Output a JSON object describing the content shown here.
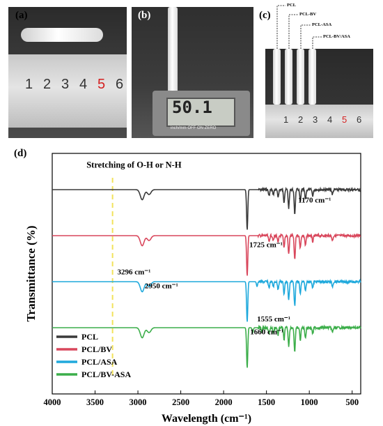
{
  "panels": {
    "a": {
      "label": "(a)",
      "ruler_numbers": [
        "1",
        "2",
        "3",
        "4",
        "5",
        "6"
      ]
    },
    "b": {
      "label": "(b)",
      "readout": "50.1",
      "units_strip": "inch/mm   OFF  ON   ZERO"
    },
    "c": {
      "label": "(c)",
      "ruler_numbers": [
        "1",
        "2",
        "3",
        "4",
        "5",
        "6"
      ],
      "tube_labels": [
        "PCL",
        "PCL-BV",
        "PCL-ASA",
        "PCL-BV/ASA"
      ]
    },
    "d": {
      "label": "(d)"
    }
  },
  "colors": {
    "PCL": "#3a3a3a",
    "PCL/BV": "#d9475c",
    "PCL/ASA": "#1fa9dc",
    "PCL/BV-ASA": "#3cae4a",
    "marker": "#f2e25a",
    "highlight": "#d42020"
  },
  "chart_data": {
    "type": "line",
    "title": "",
    "xlabel": "Wavelength (cm⁻¹)",
    "ylabel": "Transmittance (%)",
    "xlim": [
      4000,
      400
    ],
    "x_reversed": true,
    "y_ticks_shown": false,
    "xticks": [
      4000,
      3500,
      3000,
      2500,
      2000,
      1500,
      1000,
      500
    ],
    "xtick_labels": [
      "4000",
      "3500",
      "3000",
      "2500",
      "2000",
      "1500",
      "1000",
      "500"
    ],
    "legend_position": "bottom-left",
    "series": [
      {
        "name": "PCL",
        "offset": 3,
        "dips": [
          [
            2950,
            0.25
          ],
          [
            2870,
            0.12
          ],
          [
            1725,
            1.0
          ],
          [
            1470,
            0.15
          ],
          [
            1420,
            0.12
          ],
          [
            1365,
            0.18
          ],
          [
            1295,
            0.3
          ],
          [
            1240,
            0.45
          ],
          [
            1170,
            0.6
          ],
          [
            1105,
            0.3
          ],
          [
            1045,
            0.25
          ],
          [
            960,
            0.15
          ],
          [
            730,
            0.12
          ]
        ]
      },
      {
        "name": "PCL/BV",
        "offset": 2,
        "dips": [
          [
            2950,
            0.25
          ],
          [
            2870,
            0.12
          ],
          [
            1725,
            1.0
          ],
          [
            1470,
            0.15
          ],
          [
            1420,
            0.12
          ],
          [
            1365,
            0.18
          ],
          [
            1295,
            0.3
          ],
          [
            1240,
            0.45
          ],
          [
            1170,
            0.6
          ],
          [
            1105,
            0.3
          ],
          [
            1045,
            0.25
          ],
          [
            960,
            0.15
          ],
          [
            730,
            0.12
          ]
        ]
      },
      {
        "name": "PCL/ASA",
        "offset": 1,
        "dips": [
          [
            2950,
            0.25
          ],
          [
            2870,
            0.12
          ],
          [
            1725,
            1.0
          ],
          [
            1610,
            0.12
          ],
          [
            1470,
            0.15
          ],
          [
            1420,
            0.12
          ],
          [
            1365,
            0.18
          ],
          [
            1295,
            0.3
          ],
          [
            1240,
            0.45
          ],
          [
            1170,
            0.6
          ],
          [
            1105,
            0.3
          ],
          [
            1045,
            0.25
          ],
          [
            960,
            0.15
          ],
          [
            730,
            0.12
          ]
        ]
      },
      {
        "name": "PCL/BV-ASA",
        "offset": 0,
        "dips": [
          [
            2950,
            0.25
          ],
          [
            2870,
            0.12
          ],
          [
            1725,
            1.0
          ],
          [
            1660,
            0.12
          ],
          [
            1555,
            0.1
          ],
          [
            1470,
            0.15
          ],
          [
            1420,
            0.12
          ],
          [
            1365,
            0.18
          ],
          [
            1295,
            0.3
          ],
          [
            1240,
            0.45
          ],
          [
            1170,
            0.6
          ],
          [
            1105,
            0.3
          ],
          [
            1045,
            0.25
          ],
          [
            960,
            0.15
          ],
          [
            730,
            0.12
          ]
        ]
      }
    ],
    "marker_line": {
      "x": 3296
    },
    "annotations": [
      {
        "text": "Stretching of O-H or N-H",
        "x": 3600,
        "series": "PCL",
        "dy": 1.05
      },
      {
        "text": "1170 cm⁻¹",
        "x": 1130,
        "series": "PCL",
        "dy": -0.62
      },
      {
        "text": "1725 cm⁻¹",
        "x": 1700,
        "series": "PCL/BV",
        "dy": -0.55
      },
      {
        "text": "3296 cm⁻¹",
        "x": 3240,
        "series": "PCL/ASA",
        "dy": 0.35
      },
      {
        "text": "2950 cm⁻¹",
        "x": 2920,
        "series": "PCL/ASA",
        "dy": -0.32
      },
      {
        "text": "1555 cm⁻¹",
        "x": 1610,
        "series": "PCL/BV-ASA",
        "dy": 0.3
      },
      {
        "text": "1660 cm⁻¹",
        "x": 1690,
        "series": "PCL/BV-ASA",
        "dy": -0.32
      }
    ]
  }
}
